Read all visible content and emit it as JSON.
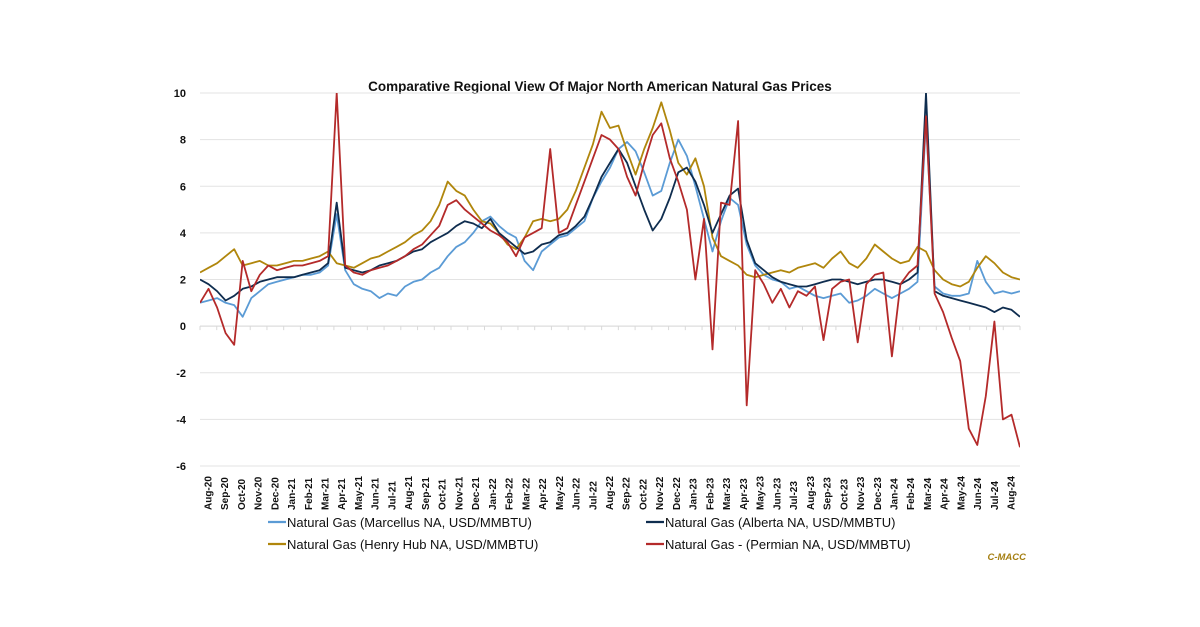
{
  "chart_data": {
    "type": "line",
    "title": "Comparative Regional View Of Major North American Natural Gas Prices",
    "xlabel": "",
    "ylabel": "",
    "ylim": [
      -6,
      10
    ],
    "yticks": [
      10,
      8,
      6,
      4,
      2,
      0,
      -2,
      -4,
      -6
    ],
    "grid": true,
    "legend_position": "bottom",
    "source_label": "C-MACC",
    "categories": [
      "Aug-20",
      "Sep-20",
      "Oct-20",
      "Nov-20",
      "Dec-20",
      "Jan-21",
      "Feb-21",
      "Mar-21",
      "Apr-21",
      "May-21",
      "Jun-21",
      "Jul-21",
      "Aug-21",
      "Sep-21",
      "Oct-21",
      "Nov-21",
      "Dec-21",
      "Jan-22",
      "Feb-22",
      "Mar-22",
      "Apr-22",
      "May-22",
      "Jun-22",
      "Jul-22",
      "Aug-22",
      "Sep-22",
      "Oct-22",
      "Nov-22",
      "Dec-22",
      "Jan-23",
      "Feb-23",
      "Mar-23",
      "Apr-23",
      "May-23",
      "Jun-23",
      "Jul-23",
      "Aug-23",
      "Sep-23",
      "Oct-23",
      "Nov-23",
      "Dec-23",
      "Jan-24",
      "Feb-24",
      "Mar-24",
      "Apr-24",
      "May-24",
      "Jun-24",
      "Jul-24",
      "Aug-24"
    ],
    "x_resolution": "semi-monthly (2 points per month, 97 points from Aug-20 to Aug-24)",
    "series": [
      {
        "name": "Natural Gas (Marcellus NA, USD/MMBTU)",
        "color": "#5b9bd5",
        "values": [
          1.0,
          1.1,
          1.2,
          1.0,
          0.9,
          0.4,
          1.2,
          1.5,
          1.8,
          1.9,
          2.0,
          2.1,
          2.2,
          2.2,
          2.3,
          2.6,
          4.8,
          2.4,
          1.8,
          1.6,
          1.5,
          1.2,
          1.4,
          1.3,
          1.7,
          1.9,
          2.0,
          2.3,
          2.5,
          3.0,
          3.4,
          3.6,
          4.0,
          4.5,
          4.7,
          4.3,
          4.0,
          3.8,
          2.8,
          2.4,
          3.2,
          3.5,
          3.8,
          3.9,
          4.2,
          4.5,
          5.5,
          6.2,
          6.8,
          7.6,
          7.9,
          7.5,
          6.6,
          5.6,
          5.8,
          7.0,
          8.0,
          7.3,
          6.0,
          4.6,
          3.2,
          4.5,
          5.5,
          5.2,
          3.5,
          2.6,
          2.2,
          2.0,
          1.9,
          1.6,
          1.7,
          1.5,
          1.3,
          1.2,
          1.3,
          1.4,
          1.0,
          1.1,
          1.3,
          1.6,
          1.4,
          1.2,
          1.4,
          1.6,
          1.9,
          8.8,
          1.7,
          1.4,
          1.3,
          1.3,
          1.4,
          2.8,
          1.9,
          1.4,
          1.5,
          1.4,
          1.5
        ]
      },
      {
        "name": "Natural Gas (Alberta NA, USD/MMBTU)",
        "color": "#0f2d4f",
        "values": [
          2.0,
          1.8,
          1.5,
          1.1,
          1.3,
          1.6,
          1.7,
          1.9,
          2.0,
          2.1,
          2.1,
          2.1,
          2.2,
          2.3,
          2.4,
          2.7,
          5.3,
          2.5,
          2.4,
          2.3,
          2.4,
          2.6,
          2.7,
          2.8,
          3.0,
          3.2,
          3.3,
          3.6,
          3.8,
          4.0,
          4.3,
          4.5,
          4.4,
          4.2,
          4.6,
          4.0,
          3.7,
          3.4,
          3.1,
          3.2,
          3.5,
          3.6,
          3.9,
          4.0,
          4.3,
          4.7,
          5.5,
          6.4,
          7.0,
          7.6,
          7.0,
          6.0,
          5.0,
          4.1,
          4.6,
          5.5,
          6.6,
          6.8,
          6.2,
          5.2,
          4.0,
          4.8,
          5.6,
          5.9,
          3.7,
          2.7,
          2.4,
          2.1,
          1.9,
          1.8,
          1.7,
          1.7,
          1.8,
          1.9,
          2.0,
          2.0,
          1.9,
          1.8,
          1.9,
          2.0,
          2.0,
          1.9,
          1.8,
          2.0,
          2.3,
          10.0,
          1.5,
          1.3,
          1.2,
          1.1,
          1.0,
          0.9,
          0.8,
          0.6,
          0.8,
          0.7,
          0.4
        ]
      },
      {
        "name": "Natural Gas (Henry Hub NA, USD/MMBTU)",
        "color": "#b0860c",
        "values": [
          2.3,
          2.5,
          2.7,
          3.0,
          3.3,
          2.6,
          2.7,
          2.8,
          2.6,
          2.6,
          2.7,
          2.8,
          2.8,
          2.9,
          3.0,
          3.2,
          2.7,
          2.6,
          2.5,
          2.7,
          2.9,
          3.0,
          3.2,
          3.4,
          3.6,
          3.9,
          4.1,
          4.5,
          5.2,
          6.2,
          5.8,
          5.6,
          5.0,
          4.5,
          4.4,
          4.0,
          3.5,
          3.3,
          3.8,
          4.5,
          4.6,
          4.5,
          4.6,
          5.0,
          5.8,
          6.8,
          7.8,
          9.2,
          8.5,
          8.6,
          7.5,
          6.5,
          7.6,
          8.5,
          9.6,
          8.4,
          7.0,
          6.5,
          7.2,
          6.0,
          3.8,
          3.0,
          2.8,
          2.6,
          2.2,
          2.1,
          2.2,
          2.3,
          2.4,
          2.3,
          2.5,
          2.6,
          2.7,
          2.5,
          2.9,
          3.2,
          2.7,
          2.5,
          2.9,
          3.5,
          3.2,
          2.9,
          2.7,
          2.8,
          3.4,
          3.2,
          2.4,
          2.0,
          1.8,
          1.7,
          1.9,
          2.5,
          3.0,
          2.7,
          2.3,
          2.1,
          2.0
        ]
      },
      {
        "name": "Natural Gas - (Permian NA, USD/MMBTU)",
        "color": "#b42a2a",
        "values": [
          1.0,
          1.6,
          0.8,
          -0.3,
          -0.8,
          2.8,
          1.5,
          2.2,
          2.6,
          2.4,
          2.5,
          2.6,
          2.6,
          2.7,
          2.8,
          3.0,
          10.0,
          2.6,
          2.3,
          2.2,
          2.4,
          2.5,
          2.6,
          2.8,
          3.0,
          3.3,
          3.5,
          3.9,
          4.3,
          5.2,
          5.4,
          5.0,
          4.7,
          4.4,
          4.1,
          3.9,
          3.6,
          3.0,
          3.8,
          4.0,
          4.2,
          7.6,
          4.0,
          4.2,
          5.2,
          6.2,
          7.2,
          8.2,
          8.0,
          7.6,
          6.4,
          5.6,
          7.0,
          8.2,
          8.7,
          7.2,
          6.2,
          5.0,
          2.0,
          4.6,
          -1.0,
          5.3,
          5.2,
          8.8,
          -3.4,
          2.4,
          1.8,
          1.0,
          1.6,
          0.8,
          1.5,
          1.3,
          1.7,
          -0.6,
          1.6,
          1.9,
          2.0,
          -0.7,
          1.8,
          2.2,
          2.3,
          -1.3,
          1.8,
          2.3,
          2.6,
          9.0,
          1.4,
          0.6,
          -0.5,
          -1.5,
          -4.4,
          -5.1,
          -3.0,
          0.2,
          -4.0,
          -3.8,
          -5.2
        ]
      }
    ]
  }
}
